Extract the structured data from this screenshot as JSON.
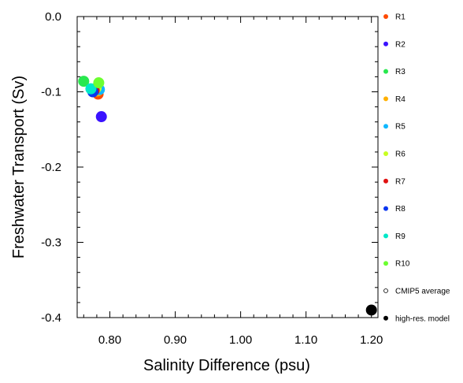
{
  "chart_data": {
    "type": "scatter",
    "xlabel": "Salinity Difference (psu)",
    "ylabel": "Freshwater Transport (Sv)",
    "xlim": [
      0.75,
      1.21
    ],
    "ylim": [
      -0.4,
      0.0
    ],
    "x_ticks": [
      0.8,
      0.9,
      1.0,
      1.1,
      1.2
    ],
    "x_tick_labels": [
      "0.80",
      "0.90",
      "1.00",
      "1.10",
      "1.20"
    ],
    "y_ticks": [
      0.0,
      -0.1,
      -0.2,
      -0.3,
      -0.4
    ],
    "y_tick_labels": [
      "0.0",
      "-0.1",
      "-0.2",
      "-0.3",
      "-0.4"
    ],
    "grid": false,
    "legend_position": "right",
    "series": [
      {
        "name": "R1",
        "color": "#ff4a00",
        "x": 0.782,
        "y": -0.103,
        "marker": "filled"
      },
      {
        "name": "R2",
        "color": "#3a12ff",
        "x": 0.787,
        "y": -0.133,
        "marker": "filled"
      },
      {
        "name": "R3",
        "color": "#28e84e",
        "x": 0.76,
        "y": -0.086,
        "marker": "filled"
      },
      {
        "name": "R4",
        "color": "#ffb000",
        "x": 0.781,
        "y": -0.099,
        "marker": "filled"
      },
      {
        "name": "R5",
        "color": "#10b8ff",
        "x": 0.784,
        "y": -0.097,
        "marker": "filled"
      },
      {
        "name": "R6",
        "color": "#c8ff20",
        "x": 0.779,
        "y": -0.095,
        "marker": "filled"
      },
      {
        "name": "R7",
        "color": "#e01010",
        "x": 0.776,
        "y": -0.098,
        "marker": "filled"
      },
      {
        "name": "R8",
        "color": "#0a36f0",
        "x": 0.774,
        "y": -0.1,
        "marker": "filled"
      },
      {
        "name": "R9",
        "color": "#00e8c8",
        "x": 0.771,
        "y": -0.096,
        "marker": "filled"
      },
      {
        "name": "R10",
        "color": "#6cff30",
        "x": 0.783,
        "y": -0.088,
        "marker": "filled"
      },
      {
        "name": "CMIP5 average",
        "color": "#000000",
        "x": null,
        "y": null,
        "marker": "open"
      },
      {
        "name": "high-res. model",
        "color": "#000000",
        "x": 1.2,
        "y": -0.39,
        "marker": "filled"
      }
    ]
  }
}
